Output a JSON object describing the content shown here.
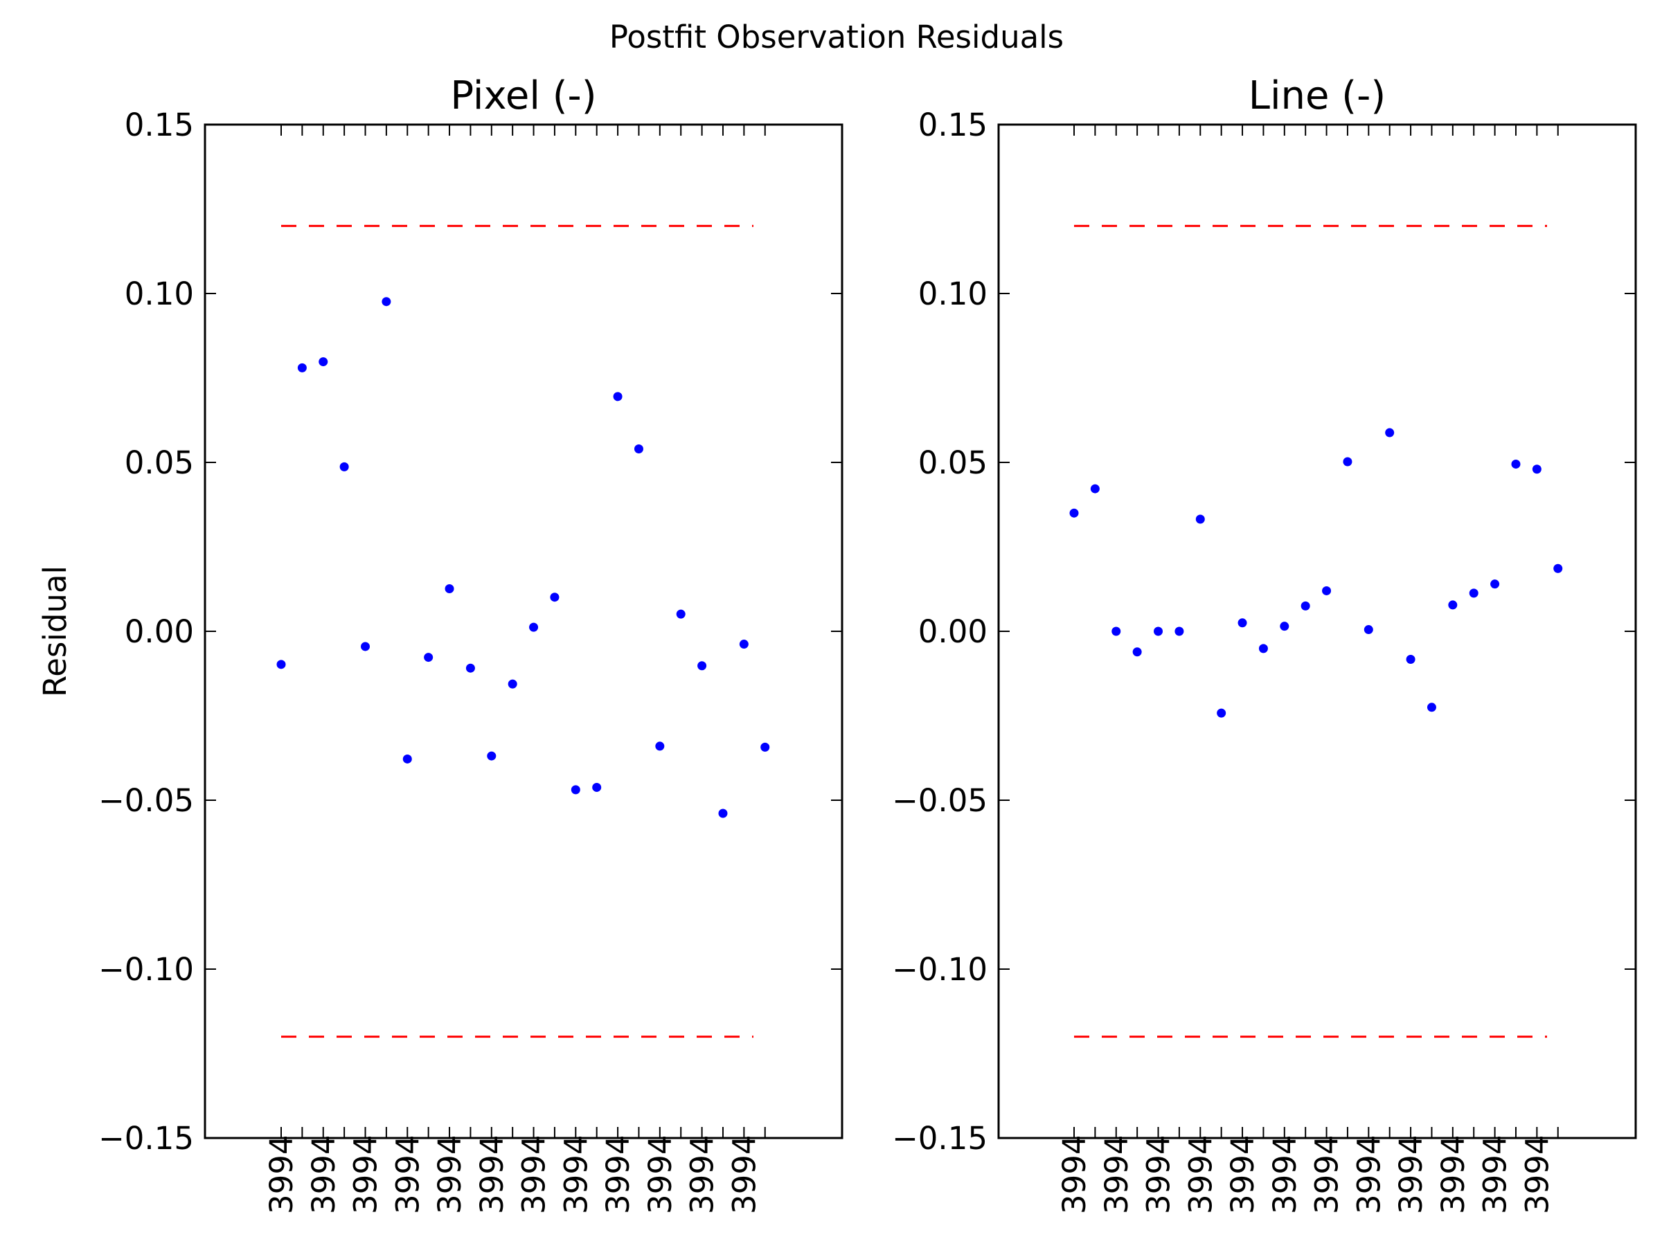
{
  "figure_title": "Postfit Observation Residuals",
  "colors": {
    "points": "#0000ff",
    "limits": "#ff0000",
    "axes": "#000000"
  },
  "chart_data": [
    {
      "type": "scatter",
      "title": "Pixel (-)",
      "ylabel": "Residual",
      "xlabel": "",
      "ylim": [
        -0.15,
        0.15
      ],
      "yticks": [
        "0.15",
        "0.10",
        "0.05",
        "0.00",
        "−0.05",
        "−0.10",
        "−0.15"
      ],
      "ytick_values": [
        0.15,
        0.1,
        0.05,
        0.0,
        -0.05,
        -0.1,
        -0.15
      ],
      "grid": false,
      "x_tick_label": "3994",
      "values": [
        -0.0098,
        0.078,
        0.0798,
        0.0487,
        -0.0045,
        0.0976,
        -0.0378,
        -0.0077,
        0.0126,
        -0.0109,
        -0.0369,
        -0.0156,
        0.0012,
        0.0101,
        -0.0469,
        -0.0462,
        0.0695,
        0.054,
        -0.034,
        0.0051,
        -0.0102,
        -0.0539,
        -0.0038,
        -0.0343
      ],
      "limit_lines": [
        0.12,
        -0.12
      ]
    },
    {
      "type": "scatter",
      "title": "Line (-)",
      "ylabel": "",
      "xlabel": "",
      "ylim": [
        -0.15,
        0.15
      ],
      "yticks": [
        "0.15",
        "0.10",
        "0.05",
        "0.00",
        "−0.05",
        "−0.10",
        "−0.15"
      ],
      "ytick_values": [
        0.15,
        0.1,
        0.05,
        0.0,
        -0.05,
        -0.1,
        -0.15
      ],
      "grid": false,
      "x_tick_label": "3994",
      "values": [
        0.035,
        0.0422,
        0.0,
        -0.0061,
        0.0,
        0.0,
        0.0332,
        -0.0242,
        0.0025,
        -0.0051,
        0.0015,
        0.0075,
        0.012,
        0.0502,
        0.0005,
        0.0588,
        -0.0083,
        -0.0225,
        0.0078,
        0.0113,
        0.014,
        0.0495,
        0.048,
        0.0186
      ],
      "limit_lines": [
        0.12,
        -0.12
      ]
    }
  ]
}
